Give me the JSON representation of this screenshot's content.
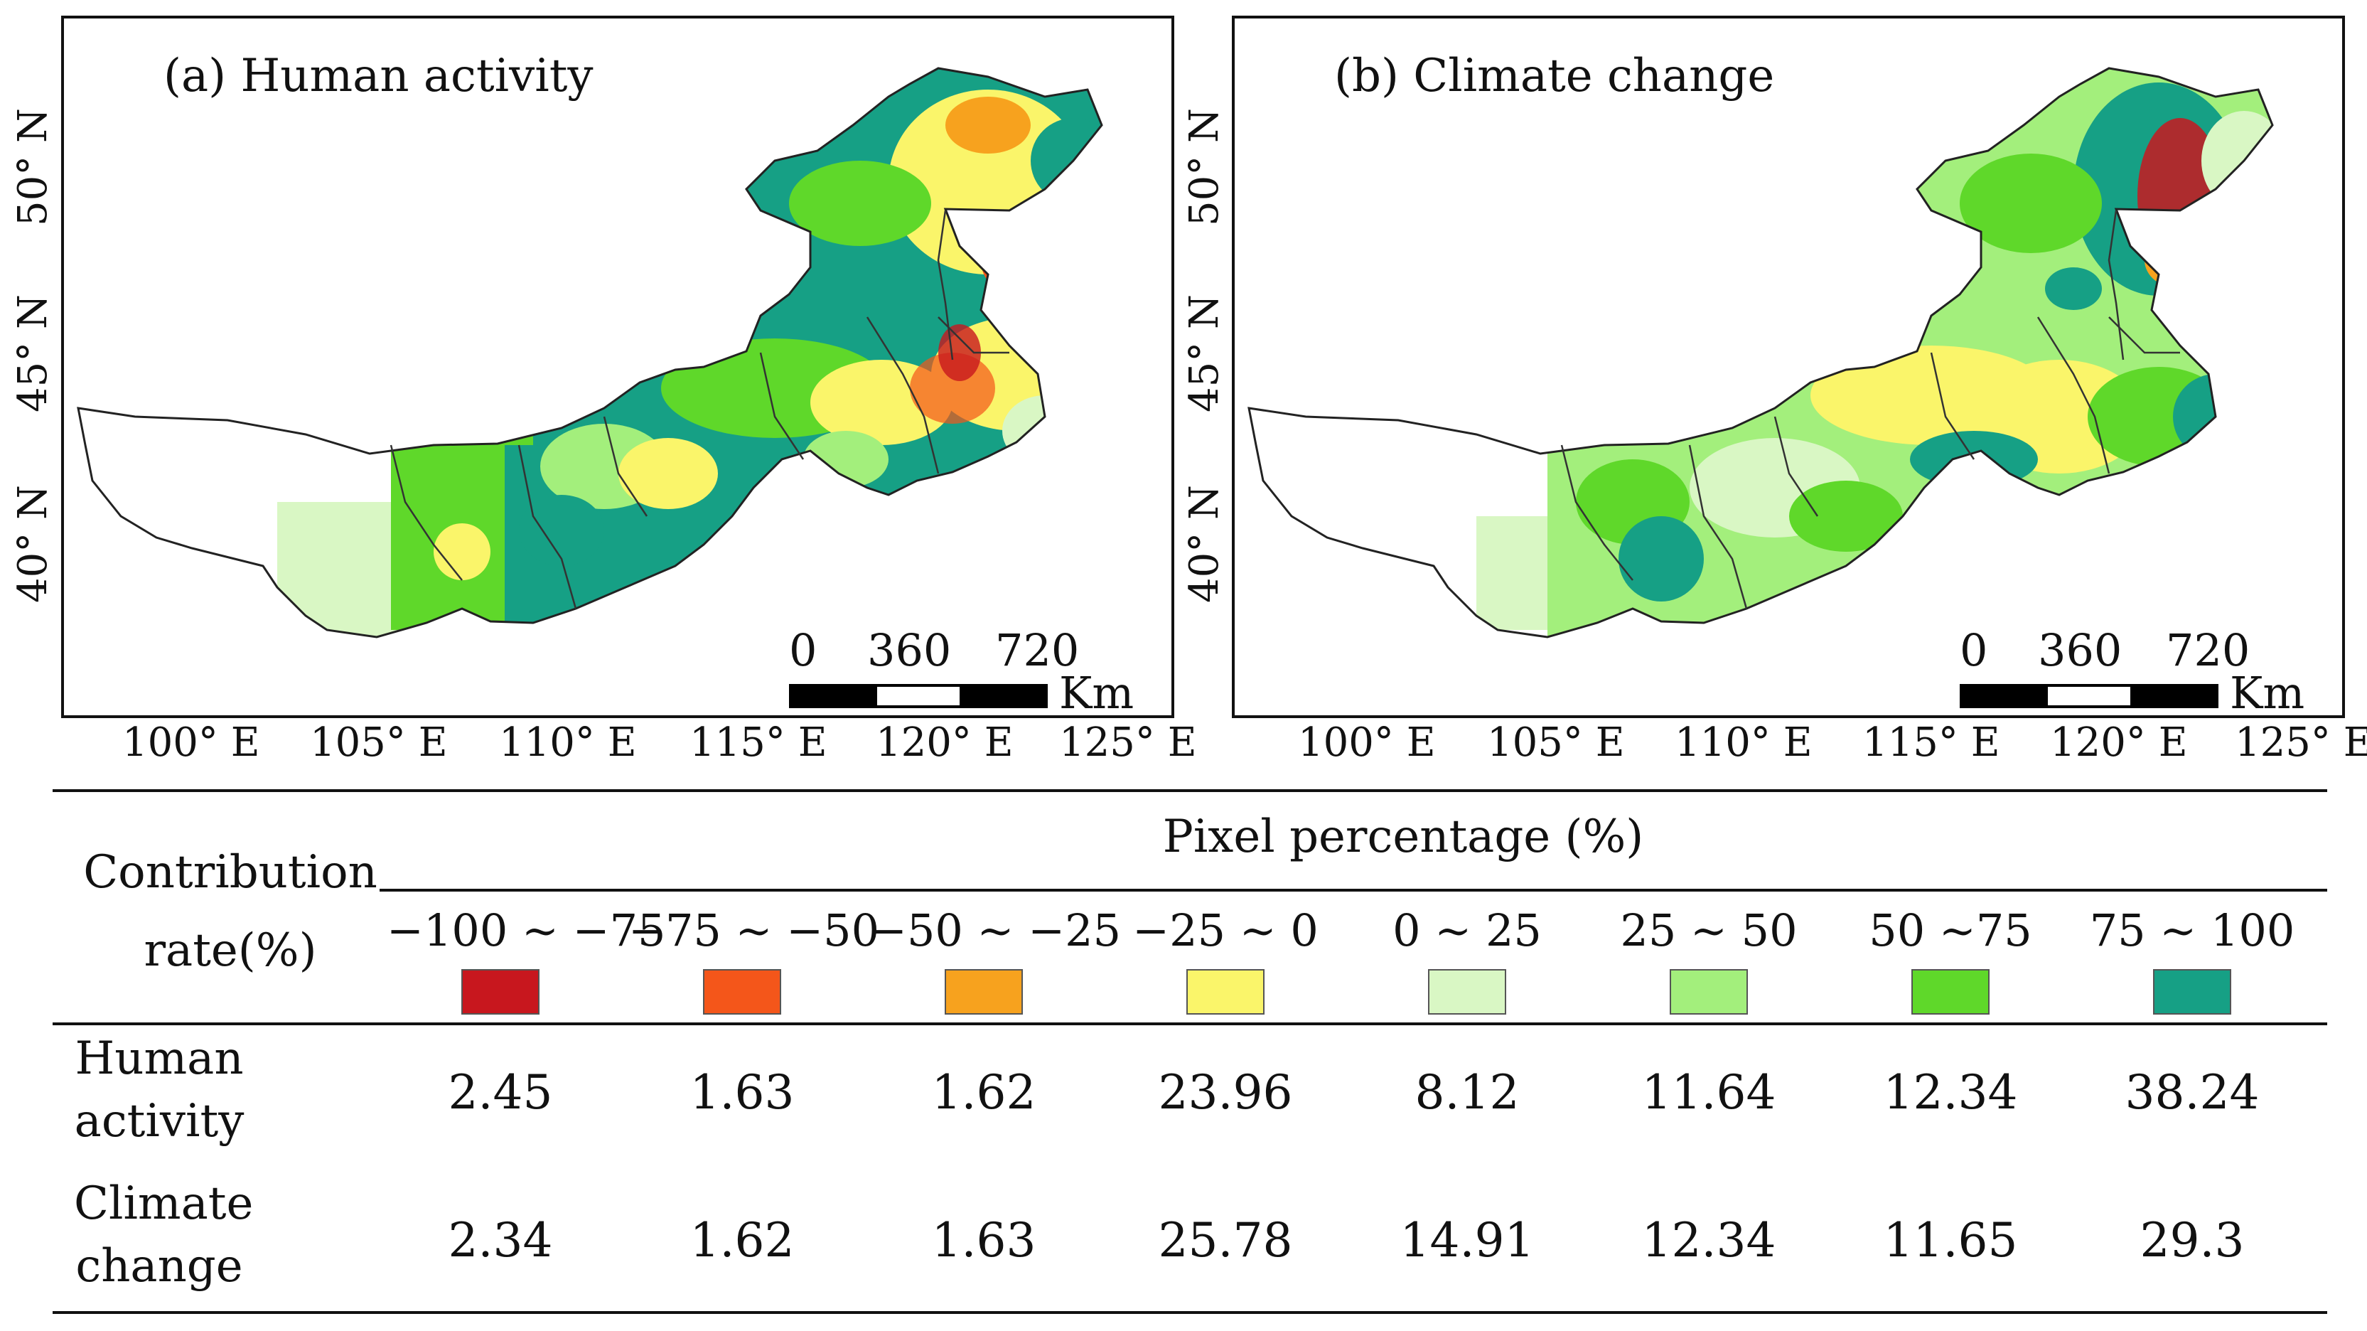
{
  "panels": [
    {
      "title": "(a) Human activity"
    },
    {
      "title": "(b) Climate change"
    }
  ],
  "scale_bar": {
    "ticks": [
      "0",
      "360",
      "720"
    ],
    "unit": "Km"
  },
  "axes": {
    "longitude_labels": [
      "100° E",
      "105° E",
      "110° E",
      "115° E",
      "120° E",
      "125° E"
    ],
    "latitude_labels": [
      "50° N",
      "45° N",
      "40° N"
    ]
  },
  "legend": {
    "row_header": [
      "Contribution",
      "rate(%)"
    ],
    "section_title": "Pixel percentage (%)",
    "classes": [
      {
        "range": "−100 ~ −75",
        "color": "#c8171e"
      },
      {
        "range": "−75 ~ −50",
        "color": "#f4561a"
      },
      {
        "range": "−50 ~ −25",
        "color": "#f7a21e"
      },
      {
        "range": "−25 ~ 0",
        "color": "#faf56a"
      },
      {
        "range": "0 ~ 25",
        "color": "#d9f7c4"
      },
      {
        "range": "25 ~ 50",
        "color": "#a3ef7c"
      },
      {
        "range": "50 ~75",
        "color": "#5fd82a"
      },
      {
        "range": "75 ~ 100",
        "color": "#16a085"
      }
    ]
  },
  "table": {
    "rows": [
      {
        "label": [
          "Human",
          "activity"
        ],
        "values": [
          "2.45",
          "1.63",
          "1.62",
          "23.96",
          "8.12",
          "11.64",
          "12.34",
          "38.24"
        ]
      },
      {
        "label": [
          "Climate",
          "change"
        ],
        "values": [
          "2.34",
          "1.62",
          "1.63",
          "25.78",
          "14.91",
          "12.34",
          "11.65",
          "29.3"
        ]
      }
    ]
  }
}
